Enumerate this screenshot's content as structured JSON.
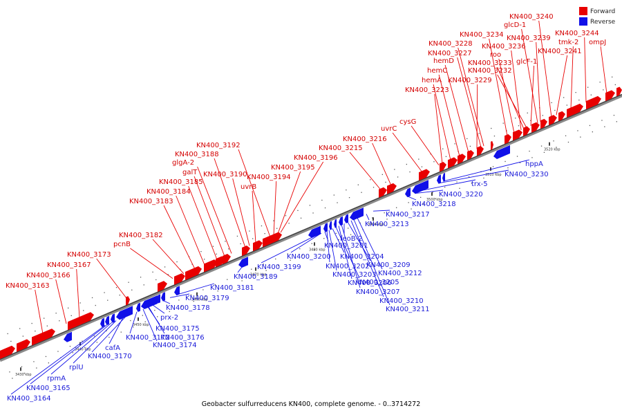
{
  "caption": "Geobacter sulfurreducens KN400, complete genome. - 0..3714272",
  "legend": {
    "forward_label": "Forward",
    "reverse_label": "Reverse",
    "forward_color": "#e80000",
    "reverse_color": "#1010e8"
  },
  "ticks": [
    "3430 kbp",
    "3440 kbp",
    "3450 kbp",
    "3460 kbp",
    "3470 kbp",
    "3480 kbp",
    "3490 kbp",
    "3500 kbp",
    "3510 kbp",
    "3520 kbp"
  ],
  "forward_genes": [
    "KN400_3163",
    "KN400_3166",
    "KN400_3167",
    "KN400_3173",
    "pcnB",
    "KN400_3182",
    "KN400_3183",
    "KN400_3184",
    "KN400_3185",
    "galT",
    "glgA-2",
    "KN400_3188",
    "KN400_3192",
    "KN400_3190",
    "uvrB",
    "KN400_3194",
    "KN400_3195",
    "KN400_3196",
    "KN400_3215",
    "KN400_3216",
    "uvrC",
    "cysG",
    "KN400_3223",
    "hemA",
    "hemC",
    "hemD",
    "KN400_3229",
    "KN400_3227",
    "KN400_3228",
    "KN400_3234",
    "roo",
    "KN400_3236",
    "KN400_3233",
    "KN400_3232",
    "glcF-1",
    "glcD-1",
    "KN400_3240",
    "KN400_3239",
    "KN400_3241",
    "tmk-2",
    "KN400_3244",
    "ompJ"
  ],
  "reverse_genes": [
    "KN400_3164",
    "KN400_3165",
    "rpmA",
    "rplU",
    "cafA",
    "KN400_3170",
    "KN400_3172",
    "KN400_3174",
    "KN400_3175",
    "KN400_3176",
    "prx-2",
    "KN400_3178",
    "KN400_3179",
    "KN400_3181",
    "KN400_3189",
    "KN400_3199",
    "KN400_3200",
    "KN400_3201",
    "KN400_3202",
    "KN400_3203",
    "KN400_3204",
    "KN400_3205",
    "KN400_3206",
    "KN400_3207",
    "feoB-2",
    "KN400_3209",
    "KN400_3210",
    "KN400_3211",
    "KN400_3212",
    "KN400_3213",
    "KN400_3217",
    "KN400_3218",
    "KN400_3220",
    "trx-5",
    "KN400_3230",
    "hppA"
  ]
}
